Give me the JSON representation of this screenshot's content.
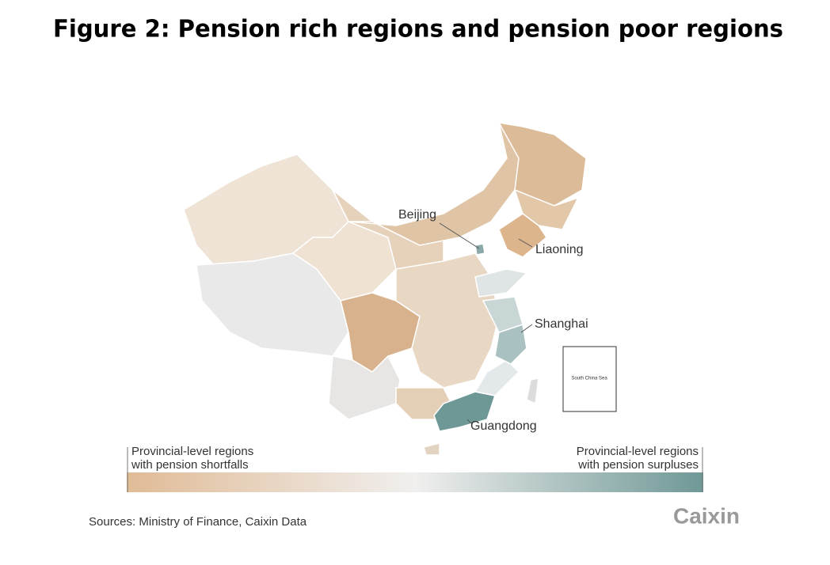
{
  "title": "Figure 2: Pension rich regions and pension poor regions",
  "map": {
    "labels": [
      "Beijing",
      "Liaoning",
      "Shanghai",
      "Guangdong"
    ],
    "inset_label": "South China Sea"
  },
  "legend": {
    "left": [
      "Provincial-level regions",
      "with pension shortfalls"
    ],
    "right": [
      "Provincial-level regions",
      "with pension surpluses"
    ]
  },
  "source": "Sources: Ministry of Finance, Caixin Data",
  "logo": "Caixin"
}
